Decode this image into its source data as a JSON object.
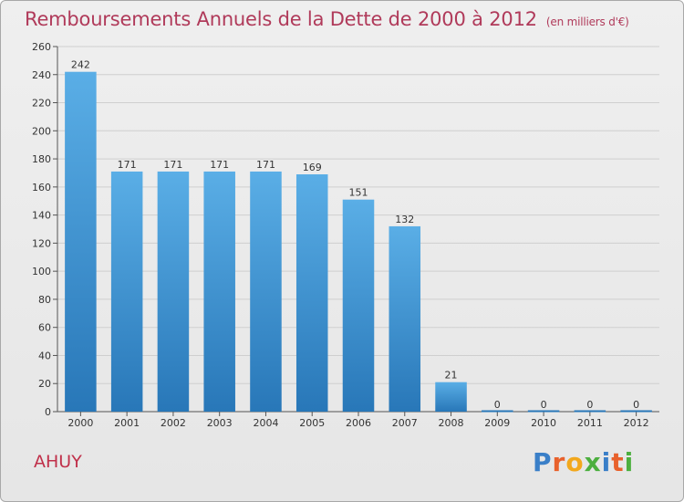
{
  "header": {
    "title": "Remboursements Annuels de la Dette de 2000 à 2012",
    "subtitle": "(en milliers d'€)"
  },
  "commune": "AHUY",
  "logo": {
    "text": "Proxiti",
    "letters": [
      {
        "char": "P",
        "color": "#3a7fc8"
      },
      {
        "char": "r",
        "color": "#e8612c"
      },
      {
        "char": "o",
        "color": "#f2a81d"
      },
      {
        "char": "x",
        "color": "#4caf3f"
      },
      {
        "char": "i",
        "color": "#3a7fc8"
      },
      {
        "char": "t",
        "color": "#e8612c"
      },
      {
        "char": "i",
        "color": "#4caf3f"
      }
    ]
  },
  "chart_data": {
    "type": "bar",
    "title": "Remboursements Annuels de la Dette de 2000 à 2012",
    "subtitle": "(en milliers d'€)",
    "xlabel": "",
    "ylabel": "",
    "categories": [
      "2000",
      "2001",
      "2002",
      "2003",
      "2004",
      "2005",
      "2006",
      "2007",
      "2008",
      "2009",
      "2010",
      "2011",
      "2012"
    ],
    "values": [
      242,
      171,
      171,
      171,
      171,
      169,
      151,
      132,
      21,
      0,
      0,
      0,
      0
    ],
    "ylim": [
      0,
      260
    ],
    "yticks": [
      0,
      20,
      40,
      60,
      80,
      100,
      120,
      140,
      160,
      180,
      200,
      220,
      240,
      260
    ],
    "grid": true,
    "bar_color_top": "#5aaee6",
    "bar_color_bottom": "#2877b8"
  }
}
